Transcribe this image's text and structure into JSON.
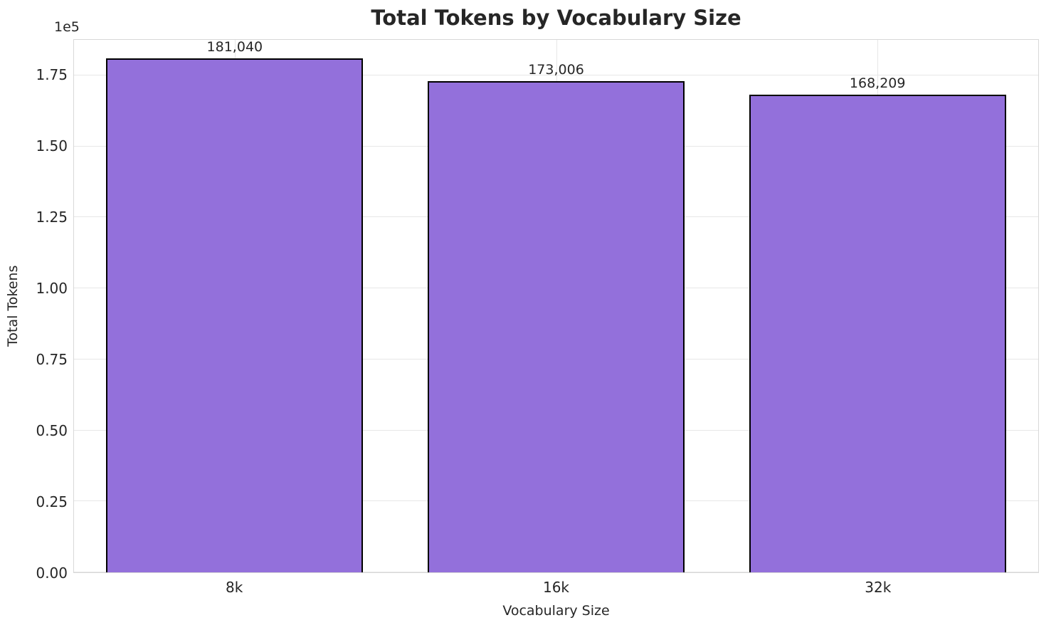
{
  "chart_data": {
    "type": "bar",
    "title": "Total Tokens by Vocabulary Size",
    "xlabel": "Vocabulary Size",
    "ylabel": "Total Tokens",
    "categories": [
      "8k",
      "16k",
      "32k"
    ],
    "values": [
      181040,
      173006,
      168209
    ],
    "value_labels": [
      "181,040",
      "173,006",
      "168,209"
    ],
    "ylim": [
      0,
      187500
    ],
    "yticks": [
      0,
      25000,
      50000,
      75000,
      100000,
      125000,
      150000,
      175000
    ],
    "ytick_labels": [
      "0.00",
      "0.25",
      "0.50",
      "0.75",
      "1.00",
      "1.25",
      "1.50",
      "1.75"
    ],
    "y_offset_text": "1e5",
    "grid": true,
    "legend": false,
    "bar_color": "#9370DB",
    "bar_edge_color": "#000000",
    "background_color": "#ffffff",
    "grid_color": "#e7e7e7"
  }
}
